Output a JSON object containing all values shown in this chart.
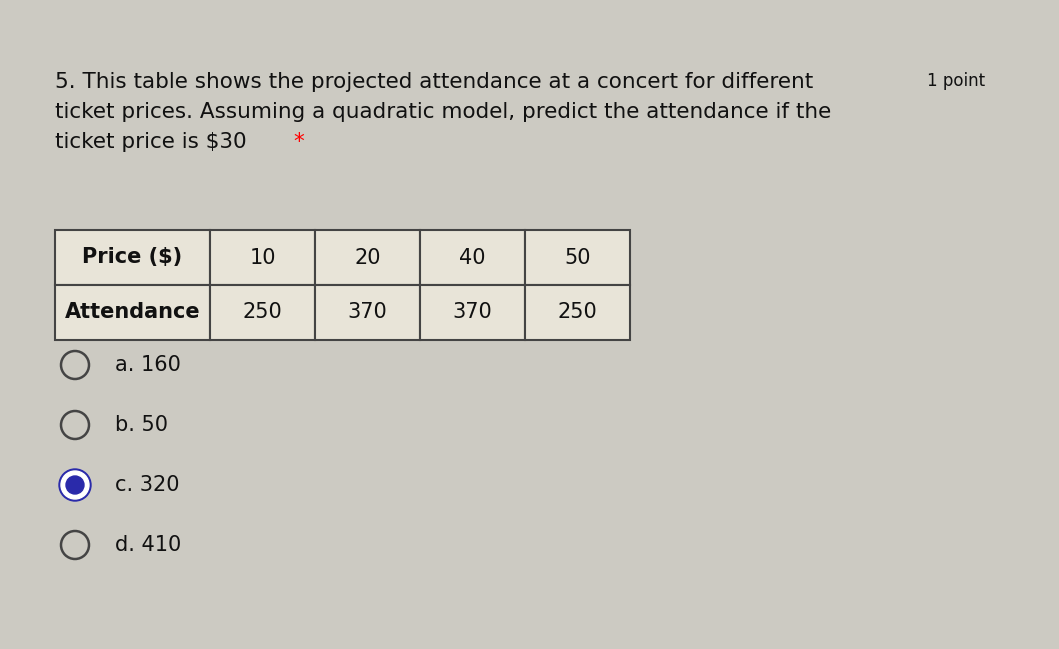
{
  "background_color": "#cccac2",
  "question_number": "5.",
  "question_text_line1": "This table shows the projected attendance at a concert for different",
  "question_text_line2": "ticket prices. Assuming a quadratic model, predict the attendance if the",
  "question_text_line3": "ticket price is $30",
  "asterisk": "*",
  "point_label": "1 point",
  "table_col0": [
    "Price ($)",
    "Attendance"
  ],
  "table_cols": [
    [
      "10",
      "250"
    ],
    [
      "20",
      "370"
    ],
    [
      "40",
      "370"
    ],
    [
      "50",
      "250"
    ]
  ],
  "options": [
    {
      "label": "a. 160",
      "selected": false
    },
    {
      "label": "b. 50",
      "selected": false
    },
    {
      "label": "c. 320",
      "selected": true
    },
    {
      "label": "d. 410",
      "selected": false
    }
  ],
  "selected_color": "#2a2aaa",
  "text_color": "#111111",
  "table_bg": "#e8e4d8",
  "question_font_size": 15.5,
  "option_font_size": 15,
  "table_font_size": 15,
  "point_font_size": 12
}
